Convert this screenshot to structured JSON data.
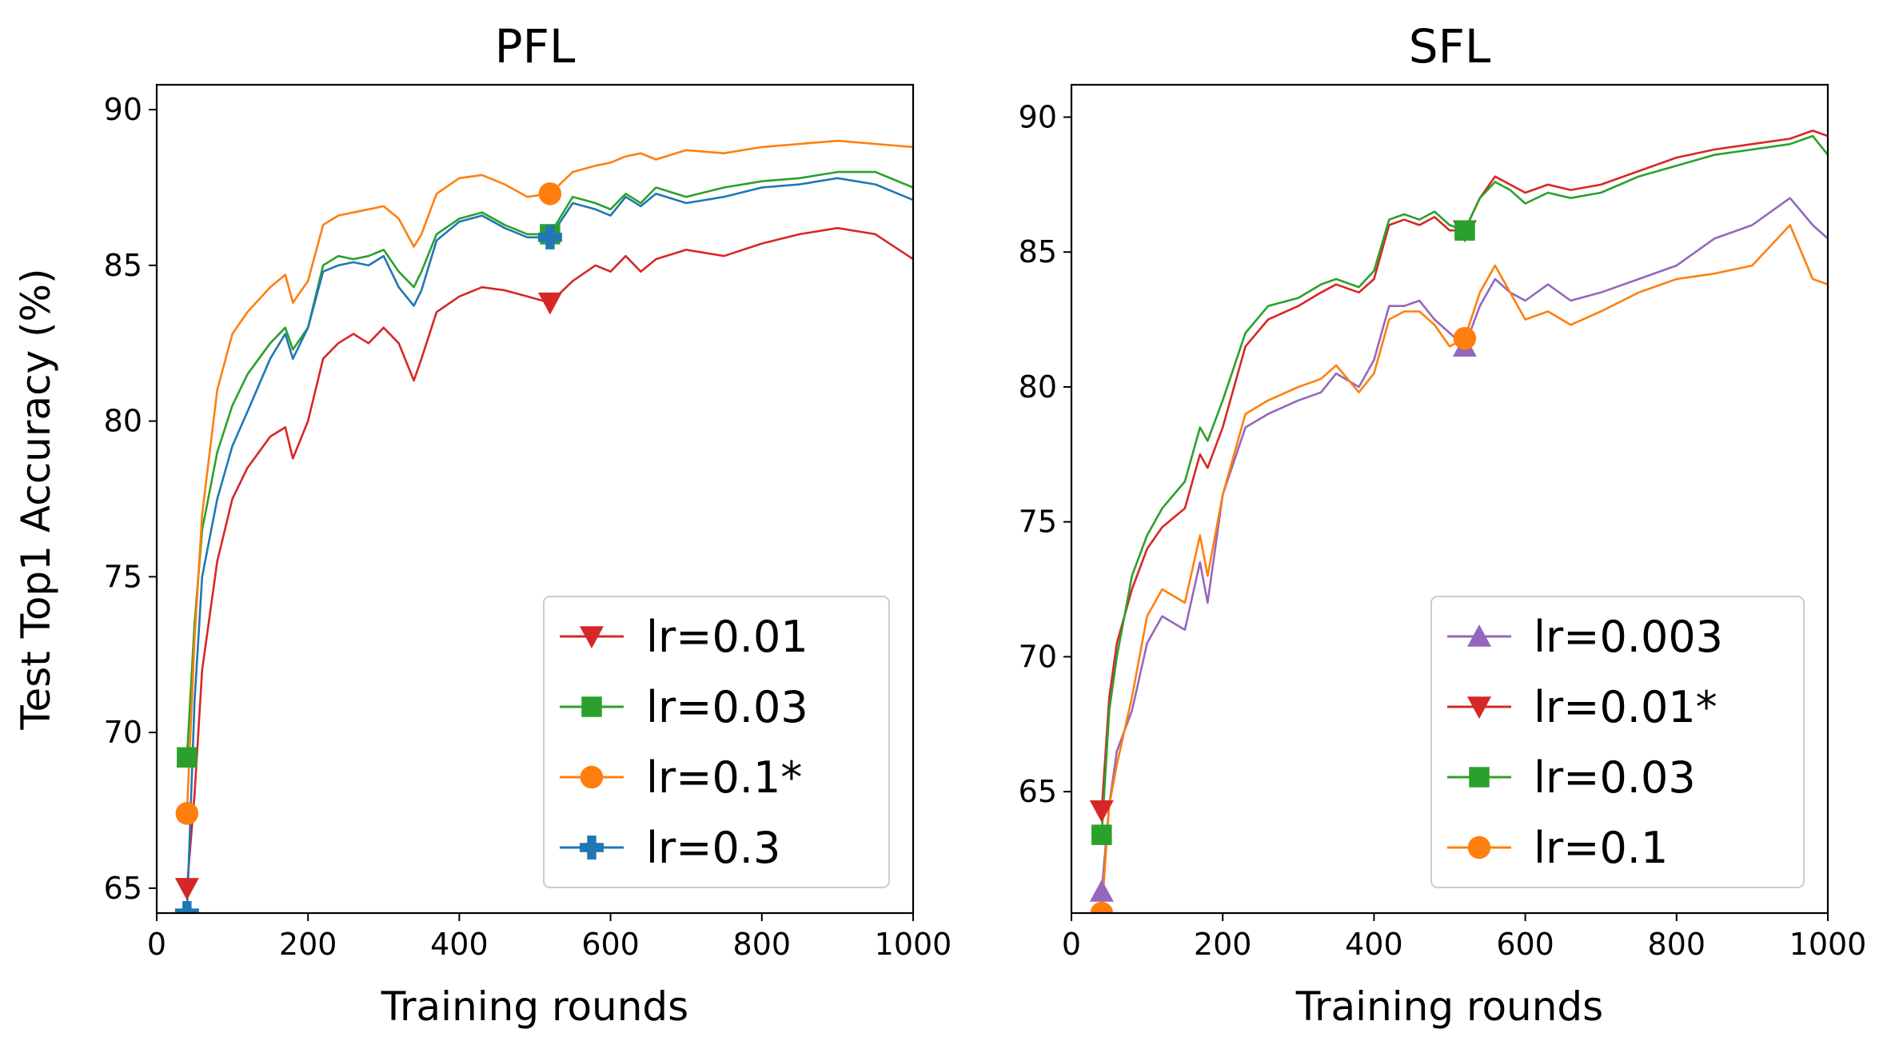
{
  "chart_data": [
    {
      "type": "line",
      "title": "PFL",
      "xlabel": "Training rounds",
      "ylabel": "Test Top1 Accuracy (%)",
      "xlim": [
        0,
        1000
      ],
      "ylim": [
        64.2,
        90.8
      ],
      "xticks": [
        "0",
        "200",
        "400",
        "600",
        "800",
        "1000"
      ],
      "yticks": [
        "65",
        "70",
        "75",
        "80",
        "85",
        "90"
      ],
      "grid": false,
      "legend_position": "lower-right",
      "markers_at": [
        40,
        520
      ],
      "series": [
        {
          "name": "lr=0.01",
          "color": "#d62728",
          "marker": "triangle-down",
          "x": [
            40,
            50,
            60,
            80,
            100,
            120,
            150,
            170,
            180,
            200,
            220,
            240,
            260,
            280,
            300,
            320,
            340,
            350,
            370,
            400,
            430,
            460,
            490,
            520,
            550,
            580,
            600,
            620,
            640,
            660,
            700,
            750,
            800,
            850,
            900,
            950,
            1000
          ],
          "y": [
            65.0,
            68.0,
            72.0,
            75.5,
            77.5,
            78.5,
            79.5,
            79.8,
            78.8,
            80.0,
            82.0,
            82.5,
            82.8,
            82.5,
            83.0,
            82.5,
            81.3,
            82.0,
            83.5,
            84.0,
            84.3,
            84.2,
            84.0,
            83.8,
            84.5,
            85.0,
            84.8,
            85.3,
            84.8,
            85.2,
            85.5,
            85.3,
            85.7,
            86.0,
            86.2,
            86.0,
            85.2
          ]
        },
        {
          "name": "lr=0.03",
          "color": "#2ca02c",
          "marker": "square",
          "x": [
            40,
            50,
            60,
            80,
            100,
            120,
            150,
            170,
            180,
            200,
            220,
            240,
            260,
            280,
            300,
            320,
            340,
            350,
            370,
            400,
            430,
            460,
            490,
            520,
            550,
            580,
            600,
            620,
            640,
            660,
            700,
            750,
            800,
            850,
            900,
            950,
            1000
          ],
          "y": [
            69.2,
            73.5,
            76.5,
            79.0,
            80.5,
            81.5,
            82.5,
            83.0,
            82.3,
            83.0,
            85.0,
            85.3,
            85.2,
            85.3,
            85.5,
            84.8,
            84.3,
            84.8,
            86.0,
            86.5,
            86.7,
            86.3,
            86.0,
            86.0,
            87.2,
            87.0,
            86.8,
            87.3,
            87.0,
            87.5,
            87.2,
            87.5,
            87.7,
            87.8,
            88.0,
            88.0,
            87.5
          ]
        },
        {
          "name": "lr=0.1*",
          "color": "#ff7f0e",
          "marker": "circle",
          "x": [
            40,
            50,
            60,
            80,
            100,
            120,
            150,
            170,
            180,
            200,
            220,
            240,
            260,
            280,
            300,
            320,
            340,
            350,
            370,
            400,
            430,
            460,
            490,
            520,
            550,
            580,
            600,
            620,
            640,
            660,
            700,
            750,
            800,
            850,
            900,
            950,
            1000
          ],
          "y": [
            67.4,
            73.0,
            77.0,
            81.0,
            82.8,
            83.5,
            84.3,
            84.7,
            83.8,
            84.5,
            86.3,
            86.6,
            86.7,
            86.8,
            86.9,
            86.5,
            85.6,
            86.0,
            87.3,
            87.8,
            87.9,
            87.6,
            87.2,
            87.3,
            88.0,
            88.2,
            88.3,
            88.5,
            88.6,
            88.4,
            88.7,
            88.6,
            88.8,
            88.9,
            89.0,
            88.9,
            88.8
          ]
        },
        {
          "name": "lr=0.3",
          "color": "#1f77b4",
          "marker": "plus-filled",
          "x": [
            40,
            50,
            60,
            80,
            100,
            120,
            150,
            170,
            180,
            200,
            220,
            240,
            260,
            280,
            300,
            320,
            340,
            350,
            370,
            400,
            430,
            460,
            490,
            520,
            550,
            580,
            600,
            620,
            640,
            660,
            700,
            750,
            800,
            850,
            900,
            950,
            1000
          ],
          "y": [
            64.2,
            71.0,
            75.0,
            77.5,
            79.2,
            80.3,
            82.0,
            82.8,
            82.0,
            83.0,
            84.8,
            85.0,
            85.1,
            85.0,
            85.3,
            84.3,
            83.7,
            84.2,
            85.8,
            86.4,
            86.6,
            86.2,
            85.9,
            85.9,
            87.0,
            86.8,
            86.6,
            87.2,
            86.9,
            87.3,
            87.0,
            87.2,
            87.5,
            87.6,
            87.8,
            87.6,
            87.1
          ]
        }
      ]
    },
    {
      "type": "line",
      "title": "SFL",
      "xlabel": "Training rounds",
      "ylabel": "",
      "xlim": [
        0,
        1000
      ],
      "ylim": [
        60.5,
        91.2
      ],
      "xticks": [
        "0",
        "200",
        "400",
        "600",
        "800",
        "1000"
      ],
      "yticks": [
        "65",
        "70",
        "75",
        "80",
        "85",
        "90"
      ],
      "grid": false,
      "legend_position": "lower-right",
      "markers_at": [
        40,
        520
      ],
      "series": [
        {
          "name": "lr=0.003",
          "color": "#9467bd",
          "marker": "triangle-up",
          "x": [
            40,
            50,
            60,
            80,
            100,
            120,
            150,
            170,
            180,
            200,
            230,
            260,
            300,
            330,
            350,
            380,
            400,
            420,
            440,
            460,
            480,
            500,
            520,
            540,
            560,
            580,
            600,
            630,
            660,
            700,
            750,
            800,
            850,
            900,
            950,
            980,
            1000
          ],
          "y": [
            61.3,
            64.5,
            66.5,
            68.0,
            70.5,
            71.5,
            71.0,
            73.5,
            72.0,
            76.0,
            78.5,
            79.0,
            79.5,
            79.8,
            80.5,
            80.0,
            81.0,
            83.0,
            83.0,
            83.2,
            82.5,
            82.0,
            81.5,
            83.0,
            84.0,
            83.5,
            83.2,
            83.8,
            83.2,
            83.5,
            84.0,
            84.5,
            85.5,
            86.0,
            87.0,
            86.0,
            85.5
          ]
        },
        {
          "name": "lr=0.01*",
          "color": "#d62728",
          "marker": "triangle-down",
          "x": [
            40,
            50,
            60,
            80,
            100,
            120,
            150,
            170,
            180,
            200,
            230,
            260,
            300,
            330,
            350,
            380,
            400,
            420,
            440,
            460,
            480,
            500,
            520,
            540,
            560,
            580,
            600,
            630,
            660,
            700,
            750,
            800,
            850,
            900,
            950,
            980,
            1000
          ],
          "y": [
            64.3,
            68.5,
            70.5,
            72.5,
            74.0,
            74.8,
            75.5,
            77.5,
            77.0,
            78.5,
            81.5,
            82.5,
            83.0,
            83.5,
            83.8,
            83.5,
            84.0,
            86.0,
            86.2,
            86.0,
            86.3,
            85.8,
            85.8,
            87.0,
            87.8,
            87.5,
            87.2,
            87.5,
            87.3,
            87.5,
            88.0,
            88.5,
            88.8,
            89.0,
            89.2,
            89.5,
            89.3
          ]
        },
        {
          "name": "lr=0.03",
          "color": "#2ca02c",
          "marker": "square",
          "x": [
            40,
            50,
            60,
            80,
            100,
            120,
            150,
            170,
            180,
            200,
            230,
            260,
            300,
            330,
            350,
            380,
            400,
            420,
            440,
            460,
            480,
            500,
            520,
            540,
            560,
            580,
            600,
            630,
            660,
            700,
            750,
            800,
            850,
            900,
            950,
            980,
            1000
          ],
          "y": [
            63.4,
            68.0,
            70.0,
            73.0,
            74.5,
            75.5,
            76.5,
            78.5,
            78.0,
            79.5,
            82.0,
            83.0,
            83.3,
            83.8,
            84.0,
            83.7,
            84.3,
            86.2,
            86.4,
            86.2,
            86.5,
            86.0,
            85.8,
            87.0,
            87.6,
            87.3,
            86.8,
            87.2,
            87.0,
            87.2,
            87.8,
            88.2,
            88.6,
            88.8,
            89.0,
            89.3,
            88.6
          ]
        },
        {
          "name": "lr=0.1",
          "color": "#ff7f0e",
          "marker": "circle",
          "x": [
            40,
            50,
            60,
            80,
            100,
            120,
            150,
            170,
            180,
            200,
            230,
            260,
            300,
            330,
            350,
            380,
            400,
            420,
            440,
            460,
            480,
            500,
            520,
            540,
            560,
            580,
            600,
            630,
            660,
            700,
            750,
            800,
            850,
            900,
            950,
            980,
            1000
          ],
          "y": [
            60.5,
            64.5,
            66.0,
            68.5,
            71.5,
            72.5,
            72.0,
            74.5,
            73.0,
            76.0,
            79.0,
            79.5,
            80.0,
            80.3,
            80.8,
            79.8,
            80.5,
            82.5,
            82.8,
            82.8,
            82.3,
            81.5,
            81.8,
            83.5,
            84.5,
            83.5,
            82.5,
            82.8,
            82.3,
            82.8,
            83.5,
            84.0,
            84.2,
            84.5,
            86.0,
            84.0,
            83.8
          ]
        }
      ]
    }
  ]
}
